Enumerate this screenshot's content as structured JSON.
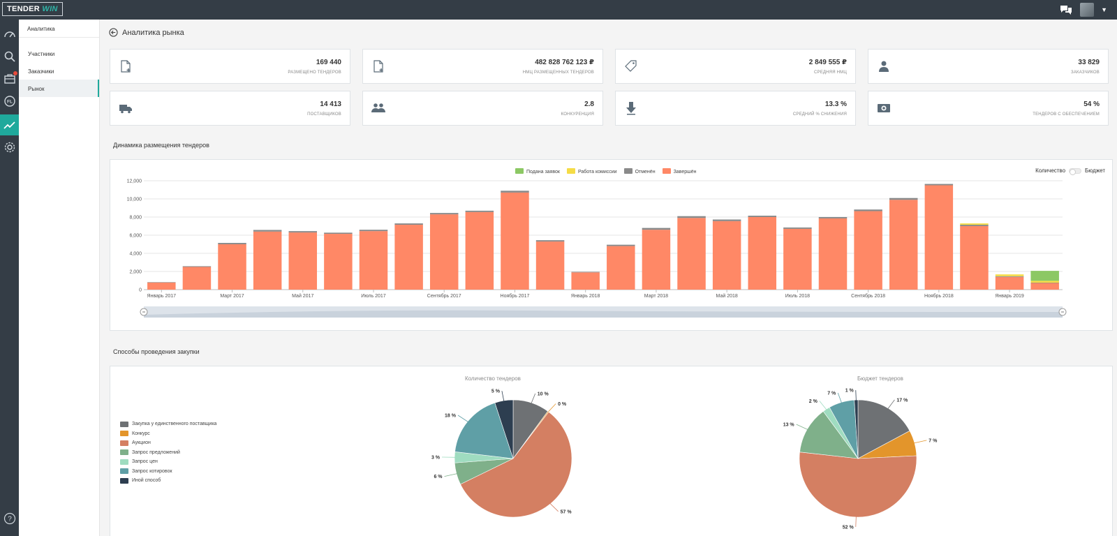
{
  "app": {
    "logo_part1": "TENDER",
    "logo_part2": "WIN"
  },
  "subnav": {
    "title": "Аналитика",
    "items": [
      {
        "label": "Участники"
      },
      {
        "label": "Заказчики"
      },
      {
        "label": "Рынок"
      }
    ]
  },
  "page": {
    "title": "Аналитика рынка"
  },
  "cards": [
    {
      "value": "169 440",
      "label": "размещено тендеров",
      "icon": "file-plus-icon"
    },
    {
      "value": "482 828 762 123 ₽",
      "label": "НМЦ размещенных тендеров",
      "icon": "file-plus-icon"
    },
    {
      "value": "2 849 555 ₽",
      "label": "средняя НМЦ",
      "icon": "price-tag-icon"
    },
    {
      "value": "33 829",
      "label": "заказчиков",
      "icon": "person-icon"
    },
    {
      "value": "14 413",
      "label": "поставщиков",
      "icon": "truck-icon"
    },
    {
      "value": "2.8",
      "label": "конкуренция",
      "icon": "group-icon"
    },
    {
      "value": "13.3 %",
      "label": "средний % снижения",
      "icon": "arrow-down-icon"
    },
    {
      "value": "54 %",
      "label": "тендеров с обеспечением",
      "icon": "money-icon"
    }
  ],
  "sections": {
    "dynamics_title": "Динамика размещения тендеров",
    "methods_title": "Способы проведения закупки"
  },
  "toggle": {
    "left_label": "Количество",
    "right_label": "Бюджет"
  },
  "colors": {
    "submitted": "#8cc864",
    "commission": "#f5dc46",
    "cancelled": "#8a8a8a",
    "completed": "#ff8866",
    "accent": "#1fa99c",
    "sidebar": "#343d46"
  },
  "chart_data": [
    {
      "type": "bar",
      "stacked": true,
      "categories": [
        "2017-01",
        "2017-02",
        "2017-03",
        "2017-04",
        "2017-05",
        "2017-06",
        "2017-07",
        "2017-08",
        "2017-09",
        "2017-10",
        "2017-11",
        "2017-12",
        "2018-01",
        "2018-02",
        "2018-03",
        "2018-04",
        "2018-05",
        "2018-06",
        "2018-07",
        "2018-08",
        "2018-09",
        "2018-10",
        "2018-11",
        "2018-12",
        "2019-01",
        "2019-02"
      ],
      "tick_labels": [
        {
          "index": 0,
          "label": "Январь 2017"
        },
        {
          "index": 2,
          "label": "Март 2017"
        },
        {
          "index": 4,
          "label": "Май 2017"
        },
        {
          "index": 6,
          "label": "Июль 2017"
        },
        {
          "index": 8,
          "label": "Сентябрь 2017"
        },
        {
          "index": 10,
          "label": "Ноябрь 2017"
        },
        {
          "index": 12,
          "label": "Январь 2018"
        },
        {
          "index": 14,
          "label": "Март 2018"
        },
        {
          "index": 16,
          "label": "Май 2018"
        },
        {
          "index": 18,
          "label": "Июль 2018"
        },
        {
          "index": 20,
          "label": "Сентябрь 2018"
        },
        {
          "index": 22,
          "label": "Ноябрь 2018"
        },
        {
          "index": 24,
          "label": "Январь 2019"
        }
      ],
      "series": [
        {
          "name": "Подана заявок",
          "color": "#8cc864",
          "values": [
            0,
            0,
            0,
            0,
            0,
            0,
            0,
            0,
            0,
            0,
            0,
            0,
            0,
            0,
            0,
            0,
            0,
            0,
            0,
            0,
            0,
            0,
            0,
            0,
            0,
            1100
          ]
        },
        {
          "name": "Работа комиссии",
          "color": "#f5dc46",
          "values": [
            0,
            0,
            0,
            0,
            0,
            0,
            0,
            0,
            0,
            0,
            0,
            0,
            0,
            0,
            0,
            0,
            0,
            0,
            0,
            0,
            0,
            0,
            0,
            150,
            200,
            200
          ]
        },
        {
          "name": "Отменён",
          "color": "#8a8a8a",
          "values": [
            20,
            80,
            150,
            180,
            150,
            130,
            150,
            150,
            150,
            150,
            200,
            150,
            60,
            150,
            200,
            200,
            180,
            150,
            150,
            150,
            180,
            200,
            150,
            150,
            80,
            20
          ]
        },
        {
          "name": "Завершён",
          "color": "#ff8866",
          "values": [
            800,
            2500,
            5000,
            6400,
            6300,
            6150,
            6450,
            7150,
            8300,
            8550,
            10700,
            5300,
            1900,
            4800,
            6600,
            7900,
            7550,
            8000,
            6700,
            7850,
            8650,
            9900,
            11500,
            7000,
            1400,
            750
          ]
        }
      ],
      "ylim": [
        0,
        12000
      ],
      "yticks": [
        "0",
        "2,000",
        "4,000",
        "6,000",
        "8,000",
        "10,000",
        "12,000"
      ],
      "legend": "top-center"
    },
    {
      "type": "pie",
      "title": "Количество тендеров",
      "labels": [
        "Закупка у единственного поставщика",
        "Конкурс",
        "Аукцион",
        "Запрос предложений",
        "Запрос цен",
        "Запрос котировок",
        "Иной способ"
      ],
      "values": [
        10,
        0.3,
        57,
        6,
        3,
        18,
        5
      ],
      "value_labels": [
        "10 %",
        "0 %",
        "57 %",
        "6 %",
        "3 %",
        "18 %",
        "5 %"
      ],
      "colors": [
        "#6e7174",
        "#e3952b",
        "#d47f62",
        "#7fb08a",
        "#9fdcc0",
        "#5f9fa6",
        "#2d3e50"
      ]
    },
    {
      "type": "pie",
      "title": "Бюджет тендеров",
      "labels": [
        "Закупка у единственного поставщика",
        "Конкурс",
        "Аукцион",
        "Запрос предложений",
        "Запрос цен",
        "Запрос котировок",
        "Иной способ"
      ],
      "values": [
        17,
        7,
        52,
        13,
        2,
        7,
        1
      ],
      "value_labels": [
        "17 %",
        "7 %",
        "52 %",
        "13 %",
        "2 %",
        "7 %",
        "1 %"
      ],
      "colors": [
        "#6e7174",
        "#e3952b",
        "#d47f62",
        "#7fb08a",
        "#9fdcc0",
        "#5f9fa6",
        "#2d3e50"
      ]
    }
  ]
}
